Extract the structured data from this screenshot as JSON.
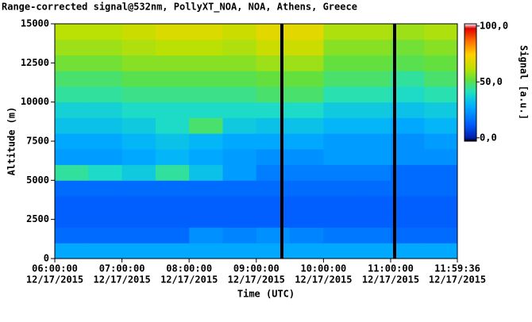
{
  "chart_data": {
    "type": "heatmap",
    "title": "Range-corrected signal@532nm, PollyXT_NOA, NOA, Athens, Greece",
    "xlabel": "Time (UTC)",
    "ylabel": "Altitude (m)",
    "colorbar_label": "Signal [a.u.]",
    "x": [
      6,
      6.5,
      7,
      7.5,
      8,
      8.5,
      9,
      9.5,
      10,
      10.5,
      11,
      11.5
    ],
    "y": [
      0,
      1000,
      2000,
      3000,
      4000,
      5000,
      6000,
      7000,
      8000,
      9000,
      10000,
      11000,
      12000,
      13000,
      14000
    ],
    "z": [
      [
        22,
        22,
        22,
        22,
        22,
        22,
        22,
        22,
        22,
        22,
        22,
        22
      ],
      [
        12,
        12,
        12,
        12,
        18,
        16,
        18,
        16,
        14,
        14,
        12,
        12
      ],
      [
        10,
        10,
        10,
        10,
        10,
        10,
        10,
        10,
        10,
        10,
        10,
        10
      ],
      [
        10,
        10,
        10,
        10,
        10,
        10,
        10,
        10,
        10,
        10,
        10,
        10
      ],
      [
        12,
        12,
        12,
        12,
        12,
        12,
        12,
        12,
        12,
        12,
        12,
        12
      ],
      [
        40,
        35,
        30,
        40,
        28,
        20,
        15,
        15,
        15,
        15,
        12,
        12
      ],
      [
        20,
        20,
        22,
        25,
        22,
        20,
        18,
        18,
        20,
        20,
        18,
        18
      ],
      [
        22,
        22,
        25,
        28,
        25,
        22,
        22,
        22,
        20,
        20,
        18,
        20
      ],
      [
        28,
        28,
        30,
        35,
        45,
        30,
        28,
        28,
        25,
        25,
        22,
        25
      ],
      [
        32,
        32,
        35,
        35,
        35,
        35,
        35,
        35,
        30,
        30,
        28,
        30
      ],
      [
        40,
        40,
        42,
        42,
        42,
        42,
        45,
        45,
        38,
        38,
        35,
        38
      ],
      [
        45,
        45,
        48,
        48,
        48,
        48,
        50,
        50,
        45,
        45,
        40,
        45
      ],
      [
        52,
        52,
        55,
        55,
        55,
        55,
        58,
        58,
        50,
        50,
        48,
        50
      ],
      [
        58,
        58,
        60,
        62,
        62,
        60,
        65,
        65,
        55,
        55,
        52,
        55
      ],
      [
        62,
        62,
        65,
        68,
        68,
        65,
        70,
        70,
        60,
        60,
        58,
        60
      ]
    ],
    "xlim": [
      6,
      11.9933
    ],
    "xticks": [
      {
        "value": 6,
        "label": [
          "06:00:00",
          "12/17/2015"
        ]
      },
      {
        "value": 7,
        "label": [
          "07:00:00",
          "12/17/2015"
        ]
      },
      {
        "value": 8,
        "label": [
          "08:00:00",
          "12/17/2015"
        ]
      },
      {
        "value": 9,
        "label": [
          "09:00:00",
          "12/17/2015"
        ]
      },
      {
        "value": 10,
        "label": [
          "10:00:00",
          "12/17/2015"
        ]
      },
      {
        "value": 11,
        "label": [
          "11:00:00",
          "12/17/2015"
        ]
      },
      {
        "value": 11.9933,
        "label": [
          "11:59:36",
          "12/17/2015"
        ]
      }
    ],
    "ylim": [
      0,
      15000
    ],
    "yticks": [
      0,
      2500,
      5000,
      7500,
      10000,
      12500,
      15000
    ],
    "zlim": [
      -3,
      102
    ],
    "zticks": [
      {
        "value": 0,
        "label": "0,0"
      },
      {
        "value": 50,
        "label": "50,0"
      },
      {
        "value": 100,
        "label": "100,0"
      }
    ],
    "colormap": [
      "#0020b0",
      "#0060ff",
      "#00b0ff",
      "#20e0c0",
      "#60e040",
      "#c0e000",
      "#ffd000",
      "#ff7000",
      "#e00000"
    ]
  }
}
